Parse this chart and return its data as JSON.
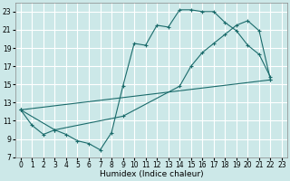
{
  "xlabel": "Humidex (Indice chaleur)",
  "xlim": [
    -0.5,
    23.5
  ],
  "ylim": [
    7,
    24
  ],
  "yticks": [
    7,
    9,
    11,
    13,
    15,
    17,
    19,
    21,
    23
  ],
  "xticks": [
    0,
    1,
    2,
    3,
    4,
    5,
    6,
    7,
    8,
    9,
    10,
    11,
    12,
    13,
    14,
    15,
    16,
    17,
    18,
    19,
    20,
    21,
    22,
    23
  ],
  "bg_color": "#cce8e8",
  "line_color": "#1a6b6b",
  "grid_color": "#ffffff",
  "lines": [
    {
      "x": [
        0,
        1,
        2,
        3,
        4,
        5,
        6,
        7,
        8,
        9,
        10,
        11,
        12,
        13,
        14,
        15,
        16,
        17,
        18,
        19,
        20,
        21,
        22
      ],
      "y": [
        12.2,
        10.5,
        9.5,
        10.0,
        9.5,
        8.8,
        8.5,
        7.8,
        9.7,
        14.8,
        19.5,
        19.3,
        21.5,
        21.3,
        23.2,
        23.2,
        23.0,
        23.0,
        21.8,
        20.9,
        19.3,
        18.3,
        15.8
      ]
    },
    {
      "x": [
        0,
        3,
        9,
        14,
        15,
        16,
        17,
        18,
        19,
        20,
        21,
        22
      ],
      "y": [
        12.2,
        10.0,
        11.5,
        14.8,
        17.0,
        18.5,
        19.5,
        20.5,
        21.5,
        22.0,
        20.9,
        15.5
      ]
    },
    {
      "x": [
        0,
        22
      ],
      "y": [
        12.2,
        15.5
      ]
    }
  ]
}
